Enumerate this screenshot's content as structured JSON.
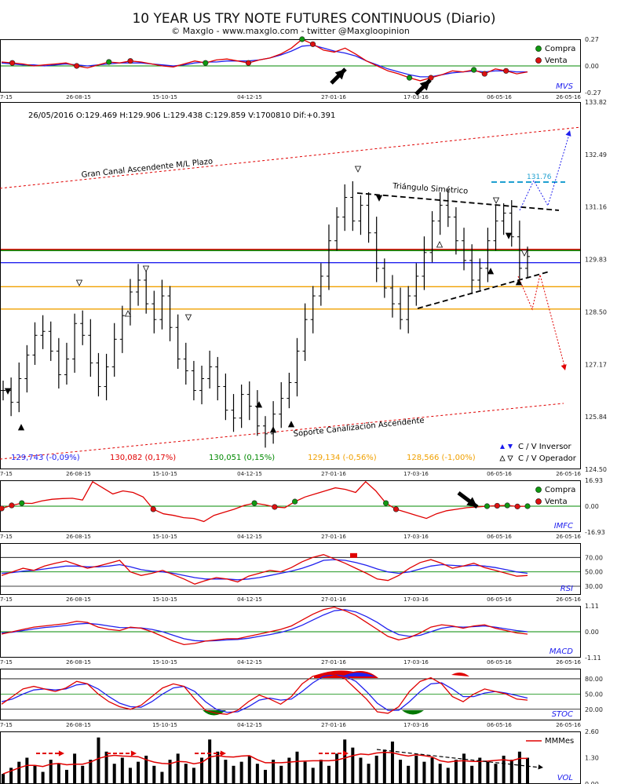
{
  "header": {
    "title": "10 YEAR US TRY NOTE FUTURES CONTINUOUS (Diario)",
    "subtitle": "© Maxglo - www.maxglo.com - twitter @Maxgloopinion"
  },
  "x_ticks": [
    "7-15",
    "26-08-15",
    "15-10-15",
    "04-12-15",
    "27-01-16",
    "17-03-16",
    "06-05-16",
    "26-05-16"
  ],
  "legend": {
    "buy": "Compra",
    "sell": "Venta"
  },
  "chart_data": [
    {
      "type": "line",
      "name_label": "MVS",
      "y_ticks": [
        "0.27",
        "0.00",
        "-0.27"
      ],
      "ylim": [
        -0.27,
        0.27
      ],
      "series_colors": [
        "#e00000",
        "#2020ee"
      ],
      "red": [
        0.04,
        0.03,
        0.02,
        0.0,
        0.01,
        0.02,
        0.03,
        0.0,
        -0.02,
        0.01,
        0.04,
        0.03,
        0.05,
        0.04,
        0.02,
        0.0,
        -0.01,
        0.02,
        0.05,
        0.03,
        0.06,
        0.07,
        0.05,
        0.03,
        0.06,
        0.08,
        0.12,
        0.18,
        0.27,
        0.22,
        0.16,
        0.14,
        0.18,
        0.12,
        0.05,
        0.0,
        -0.05,
        -0.08,
        -0.12,
        -0.15,
        -0.12,
        -0.09,
        -0.05,
        -0.06,
        -0.04,
        -0.08,
        -0.03,
        -0.05,
        -0.08,
        -0.06
      ],
      "blue": [
        0.03,
        0.02,
        0.01,
        0.01,
        0.0,
        0.01,
        0.02,
        0.01,
        0.0,
        0.01,
        0.02,
        0.03,
        0.03,
        0.03,
        0.02,
        0.01,
        0.0,
        0.01,
        0.03,
        0.04,
        0.04,
        0.05,
        0.05,
        0.05,
        0.06,
        0.08,
        0.11,
        0.15,
        0.2,
        0.21,
        0.18,
        0.15,
        0.13,
        0.1,
        0.05,
        0.01,
        -0.03,
        -0.06,
        -0.09,
        -0.11,
        -0.11,
        -0.09,
        -0.07,
        -0.06,
        -0.05,
        -0.06,
        -0.05,
        -0.05,
        -0.06,
        -0.06
      ]
    },
    {
      "type": "candlestick",
      "ohlc_label": "26/05/2016  O:129.469  H:129.906  L:129.438  C:129.859  V:1700810  Dif:+0.391",
      "y_ticks": [
        "133.82",
        "132.49",
        "131.16",
        "129.83",
        "128.50",
        "127.17",
        "125.84",
        "124.50"
      ],
      "ylim": [
        124.5,
        133.82
      ],
      "close": [
        126.5,
        126.2,
        126.8,
        127.4,
        127.9,
        128.0,
        127.5,
        126.9,
        127.3,
        128.2,
        127.9,
        127.2,
        126.6,
        127.1,
        127.8,
        128.4,
        129.0,
        129.3,
        128.7,
        128.3,
        128.9,
        128.1,
        127.3,
        127.0,
        126.5,
        126.8,
        127.1,
        126.6,
        126.0,
        125.8,
        126.4,
        126.1,
        125.6,
        125.4,
        125.9,
        126.3,
        126.7,
        127.5,
        128.3,
        128.9,
        129.4,
        130.3,
        130.9,
        131.4,
        130.8,
        131.2,
        130.5,
        129.6,
        129.1,
        128.7,
        128.3,
        128.9,
        129.4,
        130.0,
        130.8,
        131.2,
        130.9,
        130.3,
        129.8,
        129.3,
        129.6,
        130.3,
        130.8,
        131.0,
        130.4,
        129.6,
        129.9
      ]
    },
    {
      "type": "line",
      "name_label": "IMFC",
      "y_ticks": [
        "16.93",
        "0.00",
        "-16.93"
      ],
      "ylim": [
        -16.93,
        16.93
      ],
      "values": [
        -1.5,
        0.5,
        2.0,
        1.8,
        3.5,
        4.5,
        5.0,
        5.2,
        4.0,
        16.0,
        12.0,
        8.0,
        10.0,
        9.0,
        6.0,
        -2.0,
        -5.0,
        -6.0,
        -7.5,
        -8.0,
        -10.0,
        -6.0,
        -4.0,
        -2.0,
        0.5,
        2.0,
        1.0,
        -0.5,
        -1.0,
        3.0,
        6.0,
        8.0,
        10.0,
        12.0,
        11.0,
        9.0,
        16.0,
        10.0,
        2.0,
        -2.0,
        -4.0,
        -6.0,
        -8.0,
        -5.0,
        -3.0,
        -2.0,
        -1.0,
        -0.5,
        0.0,
        0.3,
        0.5,
        -0.2,
        0.0
      ]
    },
    {
      "type": "line",
      "name_label": "RSI",
      "y_ticks": [
        "70.00",
        "50.00",
        "30.00"
      ],
      "ylim": [
        18.0,
        90.0
      ],
      "series_colors": [
        "#e00000",
        "#2020ee"
      ],
      "red": [
        45,
        50,
        55,
        52,
        58,
        62,
        65,
        60,
        55,
        58,
        62,
        66,
        50,
        45,
        48,
        52,
        46,
        40,
        33,
        38,
        42,
        40,
        36,
        44,
        48,
        52,
        50,
        56,
        64,
        70,
        74,
        68,
        62,
        55,
        48,
        40,
        38,
        45,
        55,
        63,
        67,
        62,
        55,
        58,
        62,
        56,
        52,
        48,
        44,
        45
      ],
      "blue": [
        48,
        49,
        51,
        52,
        54,
        56,
        58,
        58,
        57,
        57,
        58,
        60,
        57,
        53,
        51,
        50,
        48,
        45,
        42,
        40,
        40,
        40,
        39,
        40,
        42,
        45,
        48,
        51,
        55,
        60,
        66,
        67,
        66,
        63,
        59,
        54,
        50,
        48,
        50,
        54,
        58,
        60,
        59,
        58,
        59,
        58,
        56,
        53,
        50,
        48
      ]
    },
    {
      "type": "line",
      "name_label": "MACD",
      "y_ticks": [
        "1.11",
        "0.00",
        "-1.11"
      ],
      "ylim": [
        -1.11,
        1.11
      ],
      "series_colors": [
        "#e00000",
        "#2020ee"
      ],
      "red": [
        -0.1,
        0.0,
        0.1,
        0.2,
        0.25,
        0.3,
        0.35,
        0.45,
        0.4,
        0.2,
        0.1,
        0.05,
        0.2,
        0.15,
        0.0,
        -0.2,
        -0.4,
        -0.55,
        -0.5,
        -0.4,
        -0.35,
        -0.3,
        -0.3,
        -0.2,
        -0.1,
        0.0,
        0.1,
        0.25,
        0.5,
        0.75,
        0.95,
        1.05,
        0.9,
        0.7,
        0.4,
        0.1,
        -0.2,
        -0.35,
        -0.25,
        -0.05,
        0.2,
        0.3,
        0.25,
        0.15,
        0.25,
        0.3,
        0.15,
        0.05,
        -0.05,
        -0.1
      ],
      "blue": [
        -0.05,
        -0.02,
        0.05,
        0.12,
        0.18,
        0.22,
        0.27,
        0.33,
        0.36,
        0.32,
        0.25,
        0.18,
        0.17,
        0.16,
        0.1,
        0.0,
        -0.15,
        -0.3,
        -0.38,
        -0.4,
        -0.38,
        -0.35,
        -0.33,
        -0.28,
        -0.2,
        -0.12,
        -0.03,
        0.1,
        0.28,
        0.5,
        0.72,
        0.9,
        0.95,
        0.85,
        0.65,
        0.4,
        0.1,
        -0.12,
        -0.2,
        -0.15,
        0.0,
        0.15,
        0.22,
        0.2,
        0.22,
        0.25,
        0.2,
        0.12,
        0.05,
        0.0
      ]
    },
    {
      "type": "line",
      "name_label": "STOC",
      "y_ticks": [
        "80.00",
        "50.00",
        "20.00"
      ],
      "ylim": [
        -2.0,
        100.0
      ],
      "series_colors": [
        "#e00000",
        "#2020ee"
      ],
      "red": [
        30,
        45,
        60,
        65,
        60,
        55,
        62,
        75,
        70,
        50,
        35,
        25,
        20,
        28,
        45,
        62,
        70,
        65,
        40,
        18,
        12,
        10,
        18,
        35,
        48,
        40,
        30,
        45,
        70,
        85,
        90,
        88,
        80,
        60,
        40,
        15,
        12,
        25,
        55,
        75,
        82,
        70,
        45,
        35,
        50,
        60,
        55,
        50,
        40,
        38
      ],
      "blue": [
        35,
        40,
        50,
        58,
        60,
        58,
        60,
        68,
        70,
        60,
        45,
        32,
        25,
        24,
        35,
        50,
        62,
        65,
        55,
        35,
        20,
        14,
        15,
        25,
        38,
        42,
        38,
        40,
        55,
        72,
        85,
        88,
        85,
        75,
        55,
        32,
        18,
        18,
        35,
        55,
        70,
        72,
        60,
        45,
        45,
        52,
        55,
        52,
        47,
        42
      ]
    },
    {
      "type": "bar",
      "name_label": "VOL",
      "legend": "MMMes",
      "y_ticks": [
        "2.60",
        "1.30",
        "0.00"
      ],
      "ylim": [
        0.0,
        2.6
      ],
      "values": [
        0.5,
        0.8,
        1.1,
        1.3,
        0.9,
        0.6,
        1.2,
        1.0,
        0.7,
        1.5,
        0.9,
        1.2,
        2.3,
        1.6,
        1.0,
        1.3,
        0.8,
        1.1,
        1.4,
        0.9,
        0.6,
        1.2,
        1.5,
        1.0,
        0.8,
        1.3,
        2.2,
        1.6,
        1.2,
        0.9,
        1.1,
        1.4,
        1.0,
        0.7,
        1.2,
        0.9,
        1.3,
        1.6,
        1.1,
        0.8,
        1.2,
        0.9,
        1.5,
        2.2,
        1.8,
        1.3,
        1.0,
        1.4,
        1.7,
        2.1,
        1.2,
        0.9,
        1.4,
        1.1,
        1.3,
        1.0,
        0.8,
        1.2,
        1.5,
        0.9,
        1.3,
        1.1,
        1.0,
        1.4,
        1.2,
        1.6,
        1.3
      ]
    }
  ],
  "annotations": {
    "channel_label": "Gran Canal Ascendente M/L Plazo",
    "support_label": "Soporte Canalización Ascendente",
    "triangle_label": "Triángulo Simétrico",
    "target_label": "131.76",
    "level_values": [
      {
        "text": "129,743 (-0,09%)",
        "color": "#2020ee"
      },
      {
        "text": "130,082 (0,17%)",
        "color": "#e00000"
      },
      {
        "text": "130,051 (0,15%)",
        "color": "#008800"
      },
      {
        "text": "129,134 (-0,56%)",
        "color": "#f0a000"
      },
      {
        "text": "128,566 (-1,00%)",
        "color": "#f0a000"
      }
    ],
    "key_inversor": "C / V Inversor",
    "key_operador": "C / V Operador",
    "h_levels": [
      {
        "value": 129.743,
        "color": "#2020ee"
      },
      {
        "value": 130.082,
        "color": "#e00000"
      },
      {
        "value": 130.051,
        "color": "#008800"
      },
      {
        "value": 129.134,
        "color": "#f0a000"
      },
      {
        "value": 128.566,
        "color": "#f0a000"
      }
    ]
  }
}
